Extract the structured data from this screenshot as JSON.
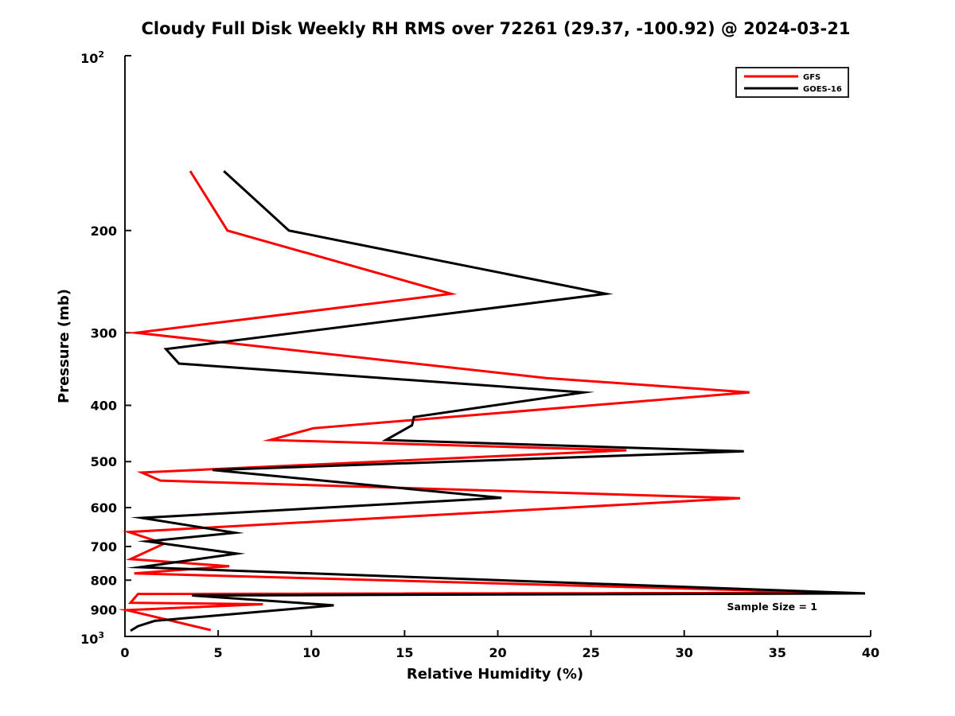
{
  "title": "Cloudy Full Disk Weekly RH RMS over 72261 (29.37, -100.92) @ 2024-03-21",
  "sample_size_label": "Sample Size = 1",
  "legend": {
    "position": "top-right",
    "items": [
      {
        "label": "GFS",
        "color": "#ff0000"
      },
      {
        "label": "GOES-16",
        "color": "#000000"
      }
    ]
  },
  "chart_data": {
    "type": "line",
    "title": "Cloudy Full Disk Weekly RH RMS over 72261 (29.37, -100.92) @ 2024-03-21",
    "xlabel": "Relative Humidity (%)",
    "ylabel": "Pressure (mb)",
    "xlim": [
      0,
      40
    ],
    "x_ticks": [
      0,
      5,
      10,
      15,
      20,
      25,
      30,
      35,
      40
    ],
    "y_scale": "log",
    "y_inverted": true,
    "ylim": [
      100,
      1000
    ],
    "y_ticks": [
      {
        "v": 100,
        "base": "10",
        "exp": "2"
      },
      {
        "v": 200,
        "label": "200"
      },
      {
        "v": 300,
        "label": "300"
      },
      {
        "v": 400,
        "label": "400"
      },
      {
        "v": 500,
        "label": "500"
      },
      {
        "v": 600,
        "label": "600"
      },
      {
        "v": 700,
        "label": "700"
      },
      {
        "v": 800,
        "label": "800"
      },
      {
        "v": 900,
        "label": "900"
      },
      {
        "v": 1000,
        "base": "10",
        "exp": "3"
      }
    ],
    "grid": false,
    "series": [
      {
        "name": "GFS",
        "color": "#ff0000",
        "points_format": [
          "relative_humidity_pct",
          "pressure_mb"
        ],
        "points": [
          [
            3.5,
            158
          ],
          [
            5.5,
            200
          ],
          [
            17.5,
            257
          ],
          [
            0.6,
            300
          ],
          [
            22.6,
            359
          ],
          [
            33.5,
            380
          ],
          [
            10.1,
            438
          ],
          [
            7.8,
            459
          ],
          [
            26.9,
            478
          ],
          [
            0.9,
            522
          ],
          [
            1.9,
            539
          ],
          [
            33.0,
            578
          ],
          [
            0.2,
            661
          ],
          [
            2.1,
            692
          ],
          [
            0.3,
            736
          ],
          [
            5.6,
            757
          ],
          [
            0.5,
            779
          ],
          [
            38.2,
            841
          ],
          [
            0.7,
            845
          ],
          [
            0.3,
            875
          ],
          [
            7.4,
            880
          ],
          [
            0.1,
            901
          ],
          [
            4.6,
            975
          ]
        ]
      },
      {
        "name": "GOES-16",
        "color": "#000000",
        "points_format": [
          "relative_humidity_pct",
          "pressure_mb"
        ],
        "points": [
          [
            5.3,
            158
          ],
          [
            8.8,
            200
          ],
          [
            25.8,
            257
          ],
          [
            2.2,
            320
          ],
          [
            2.9,
            339
          ],
          [
            24.6,
            380
          ],
          [
            15.5,
            419
          ],
          [
            15.4,
            433
          ],
          [
            14.0,
            459
          ],
          [
            33.2,
            480
          ],
          [
            4.7,
            517
          ],
          [
            20.2,
            577
          ],
          [
            0.9,
            625
          ],
          [
            5.9,
            663
          ],
          [
            1.2,
            686
          ],
          [
            6.0,
            720
          ],
          [
            0.8,
            760
          ],
          [
            39.7,
            843
          ],
          [
            3.6,
            850
          ],
          [
            11.2,
            884
          ],
          [
            1.6,
            940
          ],
          [
            0.7,
            960
          ],
          [
            0.3,
            978
          ]
        ]
      }
    ]
  }
}
